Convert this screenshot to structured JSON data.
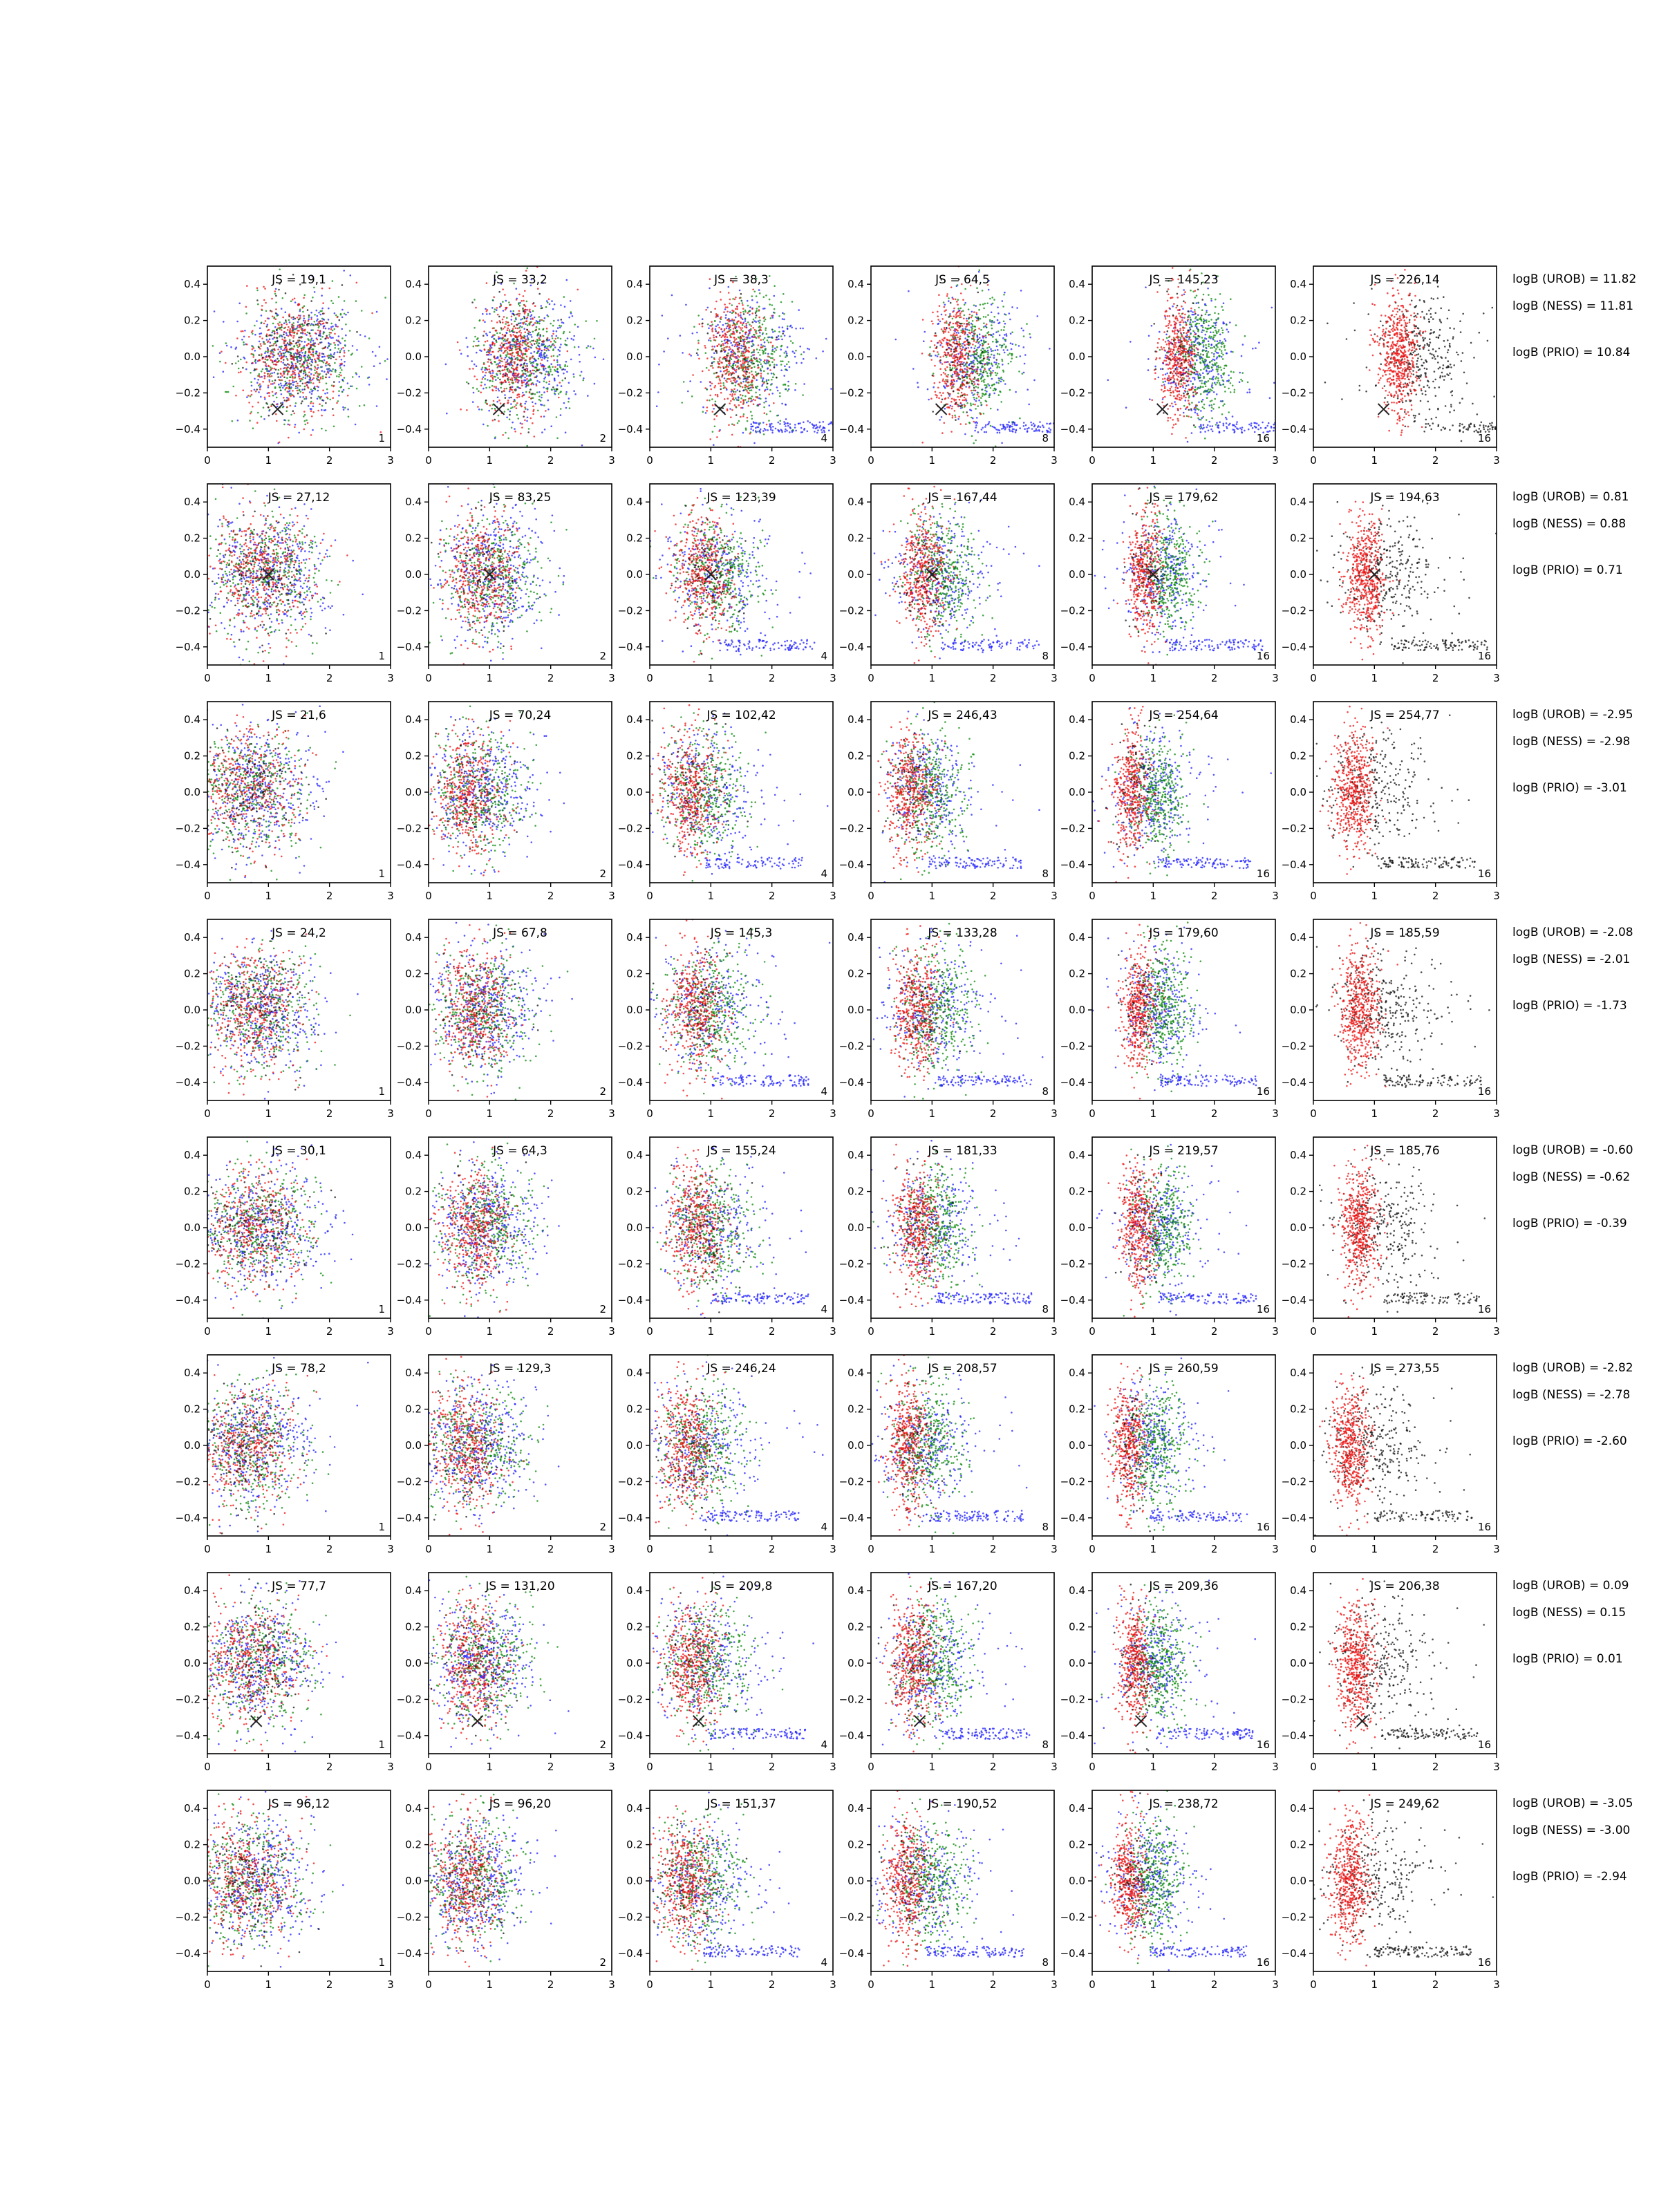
{
  "figure": {
    "x_ticks": [
      "0",
      "1",
      "2",
      "3"
    ],
    "y_ticks": [
      "0.4",
      "0.2",
      "0.0",
      "−0.2",
      "−0.4"
    ],
    "x_range": [
      0,
      3
    ],
    "y_range": [
      -0.5,
      0.5
    ],
    "panel_labels": [
      "1",
      "2",
      "4",
      "8",
      "16",
      "16"
    ],
    "colors": {
      "blue": "#1f1fff",
      "green": "#0a8a0a",
      "red": "#ee1111",
      "black": "#111111",
      "marker": "#222222"
    }
  },
  "chart_data": {
    "type": "scatter",
    "xlim": [
      0,
      3
    ],
    "ylim": [
      -0.5,
      0.5
    ],
    "grid": false,
    "rows": [
      {
        "js": [
          "JS = 19,1",
          "JS = 33,2",
          "JS = 38,3",
          "JS = 64,5",
          "JS = 145,23",
          "JS = 226,14"
        ],
        "logb": [
          "logB (UROB) = 11.82",
          "logB (NESS) = 11.81",
          "logB (PRIO) = 10.84"
        ],
        "marker": [
          1.15,
          -0.29
        ],
        "center": 1.45
      },
      {
        "js": [
          "JS = 27,12",
          "JS = 83,25",
          "JS = 123,39",
          "JS = 167,44",
          "JS = 179,62",
          "JS = 194,63"
        ],
        "logb": [
          "logB (UROB) = 0.81",
          "logB (NESS) = 0.88",
          "logB (PRIO) = 0.71"
        ],
        "marker": [
          1.0,
          0.0
        ],
        "center": 0.9
      },
      {
        "js": [
          "JS = 21,6",
          "JS = 70,24",
          "JS = 102,42",
          "JS = 246,43",
          "JS = 254,64",
          "JS = 254,77"
        ],
        "logb": [
          "logB (UROB) = -2.95",
          "logB (NESS) = -2.98",
          "logB (PRIO) = -3.01"
        ],
        "marker": null,
        "center": 0.7
      },
      {
        "js": [
          "JS = 24,2",
          "JS = 67,8",
          "JS = 145,3",
          "JS = 133,28",
          "JS = 179,60",
          "JS = 185,59"
        ],
        "logb": [
          "logB (UROB) = -2.08",
          "logB (NESS) = -2.01",
          "logB (PRIO) = -1.73"
        ],
        "marker": null,
        "center": 0.8
      },
      {
        "js": [
          "JS = 30,1",
          "JS = 64,3",
          "JS = 155,24",
          "JS = 181,33",
          "JS = 219,57",
          "JS = 185,76"
        ],
        "logb": [
          "logB (UROB) = -0.60",
          "logB (NESS) = -0.62",
          "logB (PRIO) = -0.39"
        ],
        "marker": null,
        "center": 0.8
      },
      {
        "js": [
          "JS = 78,2",
          "JS = 129,3",
          "JS = 246,24",
          "JS = 208,57",
          "JS = 260,59",
          "JS = 273,55"
        ],
        "logb": [
          "logB (UROB) = -2.82",
          "logB (NESS) = -2.78",
          "logB (PRIO) = -2.60"
        ],
        "marker": null,
        "center": 0.65
      },
      {
        "js": [
          "JS = 77,7",
          "JS = 131,20",
          "JS = 209,8",
          "JS = 167,20",
          "JS = 209,36",
          "JS = 206,38"
        ],
        "logb": [
          "logB (UROB) = 0.09",
          "logB (NESS) = 0.15",
          "logB (PRIO) = 0.01"
        ],
        "marker": [
          0.8,
          -0.32
        ],
        "center": 0.75
      },
      {
        "js": [
          "JS = 96,12",
          "JS = 96,20",
          "JS = 151,37",
          "JS = 190,52",
          "JS = 238,72",
          "JS = 249,62"
        ],
        "logb": [
          "logB (UROB) = -3.05",
          "logB (NESS) = -3.00",
          "logB (PRIO) = -2.94"
        ],
        "marker": null,
        "center": 0.65
      }
    ]
  }
}
